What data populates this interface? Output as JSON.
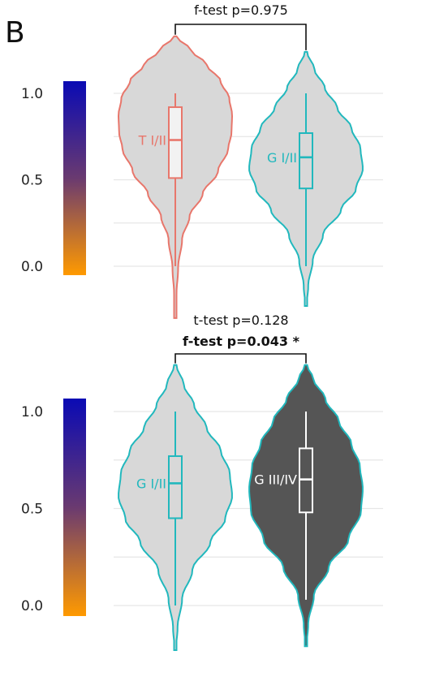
{
  "panel_label": "B",
  "colors": {
    "grade_low_outline": "#e8766b",
    "group_outline": "#21b8bd",
    "violin_light_fill": "#d8d8d8",
    "violin_dark_fill": "#555555",
    "box_light_fill": "#f2f2f2",
    "gradient_top": "#0a0ab4",
    "gradient_mid": "#6a3a70",
    "gradient_bottom": "#ff9a00",
    "grid": "#e6e6e6"
  },
  "chart_data": [
    {
      "type": "violin",
      "ylim": [
        0,
        1
      ],
      "yticks": [
        "0.0",
        "0.5",
        "1.0"
      ],
      "grid": true,
      "color_scale_bar": true,
      "annotations": [
        {
          "text": "f-test p=0.975",
          "bold": false
        }
      ],
      "groups": [
        {
          "label": "T I/II",
          "outline": "#e8766b",
          "fill": "#d8d8d8",
          "box_fill": "#f2f2f2",
          "min": -0.3,
          "max": 1.33,
          "whisker_low": 0.0,
          "q1": 0.51,
          "median": 0.73,
          "q3": 0.92,
          "whisker_high": 1.0
        },
        {
          "label": "G I/II",
          "outline": "#21b8bd",
          "fill": "#d8d8d8",
          "box_fill": "#d8d8d8",
          "min": -0.23,
          "max": 1.24,
          "whisker_low": 0.0,
          "q1": 0.45,
          "median": 0.63,
          "q3": 0.77,
          "whisker_high": 1.0
        }
      ]
    },
    {
      "type": "violin",
      "ylim": [
        0,
        1
      ],
      "yticks": [
        "0.0",
        "0.5",
        "1.0"
      ],
      "grid": true,
      "color_scale_bar": true,
      "annotations": [
        {
          "text": "t-test p=0.128",
          "bold": false
        },
        {
          "text": "f-test p=0.043 *",
          "bold": true
        }
      ],
      "groups": [
        {
          "label": "G I/II",
          "outline": "#21b8bd",
          "fill": "#d8d8d8",
          "box_fill": "#d8d8d8",
          "min": -0.23,
          "max": 1.24,
          "whisker_low": 0.0,
          "q1": 0.45,
          "median": 0.63,
          "q3": 0.77,
          "whisker_high": 1.0
        },
        {
          "label": "G III/IV",
          "outline": "#21b8bd",
          "fill": "#555555",
          "box_fill": "#555555",
          "min": -0.21,
          "max": 1.24,
          "whisker_low": 0.03,
          "q1": 0.48,
          "median": 0.65,
          "q3": 0.81,
          "whisker_high": 1.0
        }
      ]
    }
  ]
}
